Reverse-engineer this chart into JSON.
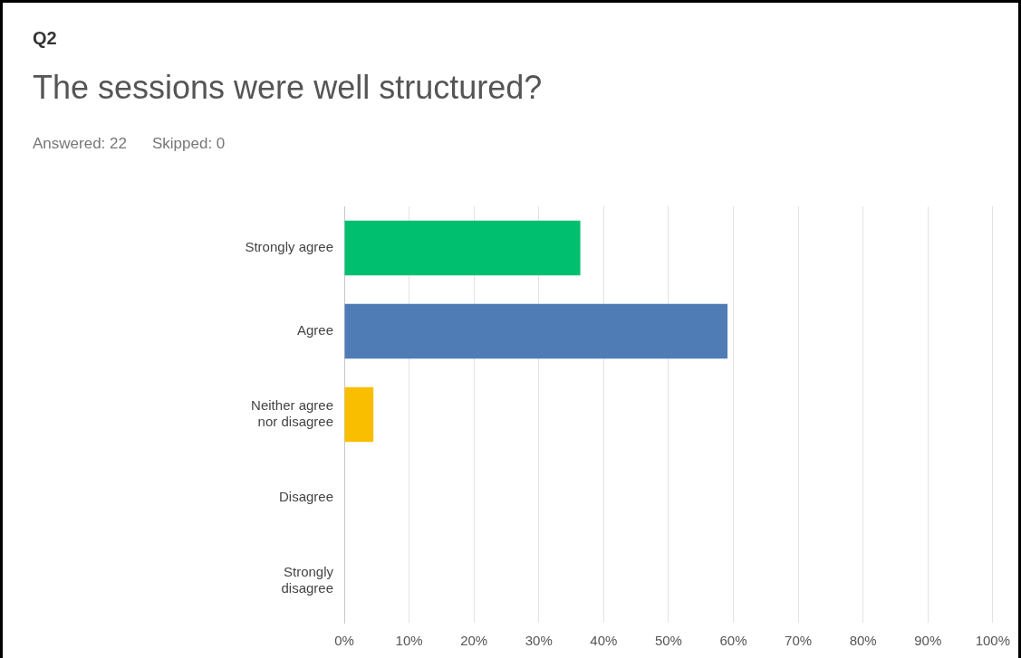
{
  "chart_data": {
    "type": "bar",
    "orientation": "horizontal",
    "title": "Q2",
    "subtitle": "The sessions were well structured?",
    "annotations": [
      "Answered: 22",
      "Skipped: 0"
    ],
    "categories": [
      "Strongly agree",
      "Agree",
      "Neither agree nor disagree",
      "Disagree",
      "Strongly disagree"
    ],
    "values": [
      36.4,
      59.1,
      4.5,
      0,
      0
    ],
    "colors": [
      "#00bf6f",
      "#507cb6",
      "#f9be00",
      "#6bc8cd",
      "#ff8b4f"
    ],
    "xlim": [
      0,
      100
    ],
    "xticks": [
      {
        "value": 0,
        "label": "0%"
      },
      {
        "value": 10,
        "label": "10%"
      },
      {
        "value": 20,
        "label": "20%"
      },
      {
        "value": 30,
        "label": "30%"
      },
      {
        "value": 40,
        "label": "40%"
      },
      {
        "value": 50,
        "label": "50%"
      },
      {
        "value": 60,
        "label": "60%"
      },
      {
        "value": 70,
        "label": "70%"
      },
      {
        "value": 80,
        "label": "80%"
      },
      {
        "value": 90,
        "label": "90%"
      },
      {
        "value": 100,
        "label": "100%"
      }
    ],
    "grid": "x",
    "legend": false
  }
}
